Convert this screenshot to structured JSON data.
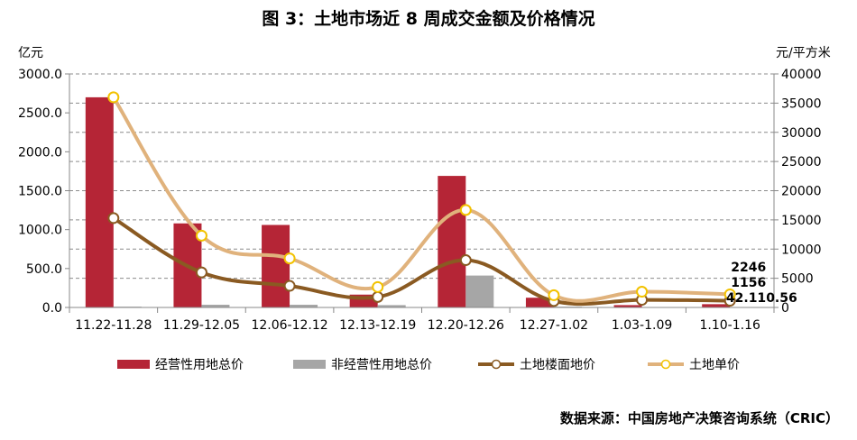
{
  "title": "图 3：土地市场近 8 周成交金额及价格情况",
  "source": "数据来源：中国房地产决策咨询系统（CRIC）",
  "colors": {
    "operating": "#b52536",
    "non_operating": "#a6a6a6",
    "floor_price": "#8a5a22",
    "unit_price": "#e0b27c",
    "unit_marker_stroke": "#f2c200"
  },
  "chart_data": {
    "type": "bar+line",
    "categories": [
      "11.22-11.28",
      "11.29-12.05",
      "12.06-12.12",
      "12.13-12.19",
      "12.20-12.26",
      "12.27-1.02",
      "1.03-1.09",
      "1.10-1.16"
    ],
    "y_left": {
      "label": "亿元",
      "range": [
        0,
        3000
      ],
      "ticks": [
        "0.0",
        "500.0",
        "1000.0",
        "1500.0",
        "2000.0",
        "2500.0",
        "3000.0"
      ]
    },
    "y_right": {
      "label": "元/平方米",
      "range": [
        0,
        40000
      ],
      "ticks": [
        "0",
        "5000",
        "10000",
        "15000",
        "20000",
        "25000",
        "30000",
        "35000",
        "40000"
      ]
    },
    "series": [
      {
        "name": "经营性用地总价",
        "type": "bar",
        "axis": "left",
        "values": [
          2700,
          1080,
          1060,
          165,
          1690,
          125,
          30,
          42.11
        ]
      },
      {
        "name": "非经营性用地总价",
        "type": "bar",
        "axis": "left",
        "values": [
          10,
          35,
          35,
          30,
          410,
          10,
          5,
          0.56
        ]
      },
      {
        "name": "土地楼面地价",
        "type": "line",
        "axis": "right",
        "values": [
          15300,
          6000,
          3700,
          1800,
          8100,
          1100,
          1300,
          1156
        ]
      },
      {
        "name": "土地单价",
        "type": "line",
        "axis": "right",
        "values": [
          36000,
          12300,
          8400,
          3500,
          16700,
          2100,
          2700,
          2246
        ]
      }
    ],
    "data_labels": [
      {
        "series": "土地单价",
        "index": 7,
        "text": "2246"
      },
      {
        "series": "土地楼面地价",
        "index": 7,
        "text": "1156"
      },
      {
        "series": "经营性用地总价",
        "index": 7,
        "text": "42.11"
      },
      {
        "series": "非经营性用地总价",
        "index": 7,
        "text": "0.56"
      }
    ],
    "legend_position": "bottom",
    "grid": true
  }
}
